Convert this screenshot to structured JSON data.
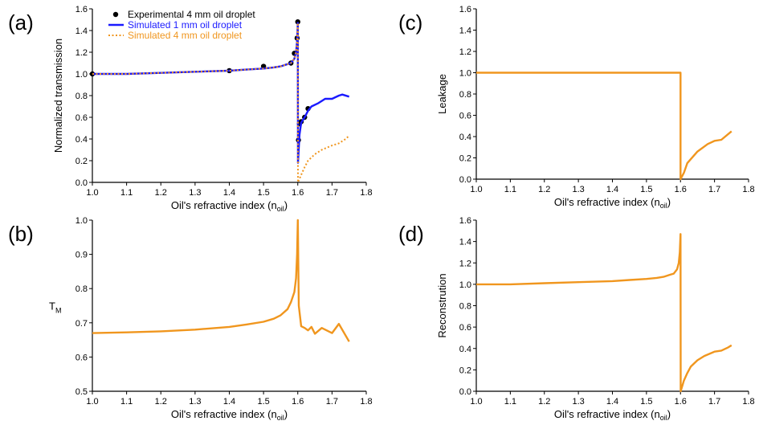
{
  "figure": {
    "panels": [
      {
        "label": "(a)"
      },
      {
        "label": "(b)"
      },
      {
        "label": "(c)"
      },
      {
        "label": "(d)"
      }
    ]
  },
  "colors": {
    "axis": "#000000",
    "experimental": "#000000",
    "simulated_1mm": "#1a1aff",
    "simulated_4mm": "#f0961e",
    "legend_1mm_text": "#1a1aff",
    "legend_4mm_text": "#f0961e"
  },
  "chart_data": [
    {
      "panel": "(a)",
      "type": "line",
      "xlabel": "Oil's refractive index (n",
      "xlabel_sub": "oil",
      "xlabel_close": ")",
      "ylabel": "Normalized transmission",
      "xlim": [
        1.0,
        1.8
      ],
      "ylim": [
        0.0,
        1.6
      ],
      "xticks": [
        "1.0",
        "1.1",
        "1.2",
        "1.3",
        "1.4",
        "1.5",
        "1.6",
        "1.7",
        "1.8"
      ],
      "yticks": [
        "0.0",
        "0.2",
        "0.4",
        "0.6",
        "0.8",
        "1.0",
        "1.2",
        "1.4",
        "1.6"
      ],
      "legend": {
        "position": "top-left",
        "entries": [
          {
            "name": "Experimental 4 mm oil droplet",
            "style": "dot"
          },
          {
            "name": "Simulated 1 mm oil droplet",
            "style": "solid"
          },
          {
            "name": "Simulated 4 mm oil droplet",
            "style": "dotted"
          }
        ]
      },
      "series": [
        {
          "name": "Experimental 4 mm oil droplet",
          "style": "dot",
          "x": [
            1.0,
            1.4,
            1.5,
            1.58,
            1.59,
            1.598,
            1.6,
            1.602,
            1.605,
            1.61,
            1.62,
            1.63
          ],
          "y": [
            1.0,
            1.03,
            1.07,
            1.1,
            1.19,
            1.33,
            1.48,
            0.39,
            0.54,
            0.56,
            0.6,
            0.68
          ]
        },
        {
          "name": "Simulated 1 mm oil droplet",
          "style": "solid",
          "x": [
            1.0,
            1.1,
            1.2,
            1.3,
            1.4,
            1.45,
            1.5,
            1.53,
            1.55,
            1.57,
            1.58,
            1.59,
            1.595,
            1.598,
            1.6,
            1.6005,
            1.605,
            1.61,
            1.62,
            1.63,
            1.64,
            1.66,
            1.68,
            1.7,
            1.72,
            1.73,
            1.75
          ],
          "y": [
            1.0,
            1.0,
            1.01,
            1.02,
            1.03,
            1.04,
            1.05,
            1.06,
            1.07,
            1.09,
            1.1,
            1.14,
            1.2,
            1.3,
            1.47,
            0.18,
            0.44,
            0.55,
            0.6,
            0.66,
            0.7,
            0.73,
            0.77,
            0.77,
            0.8,
            0.81,
            0.79
          ]
        },
        {
          "name": "Simulated 4 mm oil droplet",
          "style": "dotted",
          "x": [
            1.0,
            1.1,
            1.2,
            1.3,
            1.4,
            1.45,
            1.5,
            1.53,
            1.55,
            1.57,
            1.58,
            1.59,
            1.595,
            1.598,
            1.6,
            1.6005,
            1.61,
            1.62,
            1.63,
            1.65,
            1.67,
            1.7,
            1.72,
            1.74,
            1.75
          ],
          "y": [
            1.0,
            1.0,
            1.01,
            1.02,
            1.03,
            1.04,
            1.05,
            1.06,
            1.07,
            1.09,
            1.1,
            1.14,
            1.2,
            1.3,
            1.47,
            0.0,
            0.07,
            0.14,
            0.2,
            0.26,
            0.3,
            0.34,
            0.36,
            0.4,
            0.43
          ]
        }
      ]
    },
    {
      "panel": "(b)",
      "type": "line",
      "xlabel": "Oil's refractive index (n",
      "xlabel_sub": "oil",
      "xlabel_close": ")",
      "ylabel": "T",
      "ylabel_sub": "M",
      "xlim": [
        1.0,
        1.8
      ],
      "ylim": [
        0.5,
        1.0
      ],
      "xticks": [
        "1.0",
        "1.1",
        "1.2",
        "1.3",
        "1.4",
        "1.5",
        "1.6",
        "1.7",
        "1.8"
      ],
      "yticks": [
        "0.5",
        "0.6",
        "0.7",
        "0.8",
        "0.9",
        "1.0"
      ],
      "series": [
        {
          "style": "solid",
          "x": [
            1.0,
            1.1,
            1.2,
            1.3,
            1.4,
            1.45,
            1.5,
            1.53,
            1.55,
            1.57,
            1.58,
            1.59,
            1.595,
            1.598,
            1.6,
            1.603,
            1.61,
            1.62,
            1.63,
            1.64,
            1.65,
            1.67,
            1.7,
            1.72,
            1.75
          ],
          "y": [
            0.67,
            0.672,
            0.675,
            0.68,
            0.688,
            0.695,
            0.703,
            0.712,
            0.722,
            0.74,
            0.76,
            0.79,
            0.83,
            0.9,
            1.0,
            0.75,
            0.69,
            0.685,
            0.678,
            0.688,
            0.668,
            0.685,
            0.67,
            0.697,
            0.645
          ]
        }
      ]
    },
    {
      "panel": "(c)",
      "type": "line",
      "xlabel": "Oil's refractive index (n",
      "xlabel_sub": "oil",
      "xlabel_close": ")",
      "ylabel": "Leakage",
      "xlim": [
        1.0,
        1.8
      ],
      "ylim": [
        0.0,
        1.6
      ],
      "xticks": [
        "1.0",
        "1.1",
        "1.2",
        "1.3",
        "1.4",
        "1.5",
        "1.6",
        "1.7",
        "1.8"
      ],
      "yticks": [
        "0.0",
        "0.2",
        "0.4",
        "0.6",
        "0.8",
        "1.0",
        "1.2",
        "1.4",
        "1.6"
      ],
      "series": [
        {
          "style": "solid",
          "x": [
            1.0,
            1.6,
            1.6,
            1.61,
            1.62,
            1.65,
            1.68,
            1.7,
            1.72,
            1.75
          ],
          "y": [
            1.0,
            1.0,
            0.0,
            0.06,
            0.15,
            0.26,
            0.33,
            0.36,
            0.37,
            0.45
          ]
        }
      ]
    },
    {
      "panel": "(d)",
      "type": "line",
      "xlabel": "Oil's refractive index (n",
      "xlabel_sub": "oil",
      "xlabel_close": ")",
      "ylabel": "Reconstrution",
      "xlim": [
        1.0,
        1.8
      ],
      "ylim": [
        0.0,
        1.6
      ],
      "xticks": [
        "1.0",
        "1.1",
        "1.2",
        "1.3",
        "1.4",
        "1.5",
        "1.6",
        "1.7",
        "1.8"
      ],
      "yticks": [
        "0.0",
        "0.2",
        "0.4",
        "0.6",
        "0.8",
        "1.0",
        "1.2",
        "1.4",
        "1.6"
      ],
      "series": [
        {
          "style": "solid",
          "x": [
            1.0,
            1.1,
            1.2,
            1.3,
            1.4,
            1.45,
            1.5,
            1.53,
            1.55,
            1.57,
            1.58,
            1.59,
            1.595,
            1.598,
            1.6,
            1.6005,
            1.61,
            1.62,
            1.63,
            1.65,
            1.67,
            1.7,
            1.72,
            1.74,
            1.75
          ],
          "y": [
            1.0,
            1.0,
            1.01,
            1.02,
            1.03,
            1.04,
            1.05,
            1.06,
            1.07,
            1.09,
            1.1,
            1.14,
            1.2,
            1.3,
            1.47,
            0.0,
            0.1,
            0.17,
            0.23,
            0.29,
            0.33,
            0.37,
            0.38,
            0.41,
            0.43
          ]
        }
      ]
    }
  ]
}
